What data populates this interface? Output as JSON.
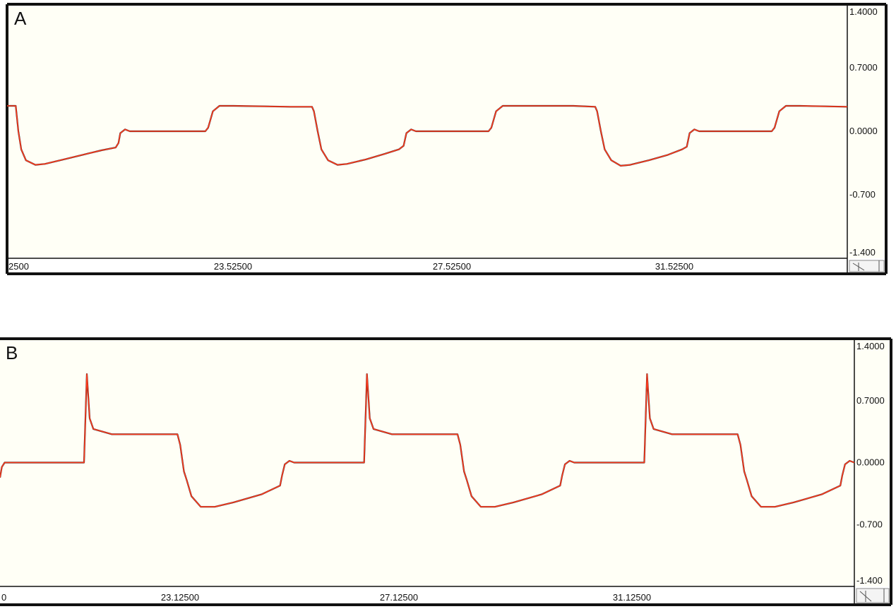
{
  "chart_data": [
    {
      "type": "line",
      "panel_label": "A",
      "x_tick_labels": [
        "2500",
        "23.52500",
        "27.52500",
        "31.52500"
      ],
      "y_tick_labels": [
        "1.4000",
        "0.7000",
        "0.0000",
        "-0.700",
        "-1.400"
      ],
      "ylim": [
        -1.4,
        1.4
      ],
      "grid": false,
      "colors": {
        "trace": "#ff3b1f",
        "underlay": "#1a1a1a",
        "background": "#fffff6",
        "frame": "#111111"
      },
      "series": [
        {
          "points": [
            [
              0,
              0.28
            ],
            [
              0.092,
              0.28
            ],
            [
              0.12,
              0.0
            ],
            [
              0.15,
              -0.2
            ],
            [
              0.2,
              -0.32
            ],
            [
              0.3,
              -0.37
            ],
            [
              0.4,
              -0.36
            ],
            [
              0.6,
              -0.31
            ],
            [
              0.8,
              -0.26
            ],
            [
              1.0,
              -0.21
            ],
            [
              1.15,
              -0.18
            ],
            [
              1.18,
              -0.13
            ],
            [
              1.2,
              -0.02
            ],
            [
              1.25,
              0.02
            ],
            [
              1.3,
              0.0
            ],
            [
              2.1,
              0.0
            ],
            [
              2.13,
              0.04
            ],
            [
              2.18,
              0.22
            ],
            [
              2.25,
              0.28
            ],
            [
              2.4,
              0.28
            ],
            [
              3.0,
              0.27
            ],
            [
              3.23,
              0.27
            ],
            [
              3.25,
              0.22
            ],
            [
              3.29,
              0.0
            ],
            [
              3.33,
              -0.2
            ],
            [
              3.4,
              -0.32
            ],
            [
              3.5,
              -0.37
            ],
            [
              3.6,
              -0.36
            ],
            [
              3.8,
              -0.31
            ],
            [
              4.0,
              -0.25
            ],
            [
              4.15,
              -0.2
            ],
            [
              4.2,
              -0.16
            ],
            [
              4.23,
              -0.02
            ],
            [
              4.28,
              0.02
            ],
            [
              4.33,
              0.0
            ],
            [
              5.1,
              0.0
            ],
            [
              5.13,
              0.04
            ],
            [
              5.18,
              0.22
            ],
            [
              5.25,
              0.28
            ],
            [
              5.4,
              0.28
            ],
            [
              6.0,
              0.28
            ],
            [
              6.23,
              0.27
            ],
            [
              6.25,
              0.22
            ],
            [
              6.29,
              0.0
            ],
            [
              6.33,
              -0.2
            ],
            [
              6.4,
              -0.32
            ],
            [
              6.5,
              -0.38
            ],
            [
              6.6,
              -0.37
            ],
            [
              6.8,
              -0.32
            ],
            [
              7.0,
              -0.26
            ],
            [
              7.15,
              -0.2
            ],
            [
              7.2,
              -0.17
            ],
            [
              7.23,
              -0.02
            ],
            [
              7.28,
              0.02
            ],
            [
              7.33,
              0.0
            ],
            [
              8.1,
              0.0
            ],
            [
              8.13,
              0.04
            ],
            [
              8.18,
              0.22
            ],
            [
              8.25,
              0.28
            ],
            [
              8.4,
              0.28
            ],
            [
              8.9,
              0.27
            ]
          ]
        }
      ]
    },
    {
      "type": "line",
      "panel_label": "B",
      "x_tick_labels": [
        "0",
        "23.12500",
        "27.12500",
        "31.12500"
      ],
      "y_tick_labels": [
        "1.4000",
        "0.7000",
        "0.0000",
        "-0.700",
        "-1.400"
      ],
      "ylim": [
        -1.4,
        1.4
      ],
      "grid": false,
      "colors": {
        "trace": "#ff3b1f",
        "underlay": "#1a1a1a",
        "background": "#fffff6",
        "frame": "#111111"
      },
      "series": [
        {
          "points": [
            [
              0,
              -0.17
            ],
            [
              0.02,
              -0.05
            ],
            [
              0.05,
              0.0
            ],
            [
              0.1,
              0.0
            ],
            [
              0.9,
              0.0
            ],
            [
              0.93,
              1.0
            ],
            [
              0.96,
              0.5
            ],
            [
              1.0,
              0.38
            ],
            [
              1.2,
              0.32
            ],
            [
              1.5,
              0.32
            ],
            [
              1.9,
              0.32
            ],
            [
              1.93,
              0.2
            ],
            [
              1.97,
              -0.1
            ],
            [
              2.0,
              -0.2
            ],
            [
              2.05,
              -0.38
            ],
            [
              2.15,
              -0.5
            ],
            [
              2.3,
              -0.5
            ],
            [
              2.5,
              -0.45
            ],
            [
              2.8,
              -0.36
            ],
            [
              3.0,
              -0.26
            ],
            [
              3.02,
              -0.15
            ],
            [
              3.05,
              -0.02
            ],
            [
              3.1,
              0.02
            ],
            [
              3.15,
              0.0
            ],
            [
              3.9,
              0.0
            ],
            [
              3.93,
              1.0
            ],
            [
              3.96,
              0.5
            ],
            [
              4.0,
              0.38
            ],
            [
              4.2,
              0.32
            ],
            [
              4.5,
              0.32
            ],
            [
              4.9,
              0.32
            ],
            [
              4.93,
              0.2
            ],
            [
              4.97,
              -0.1
            ],
            [
              5.0,
              -0.2
            ],
            [
              5.05,
              -0.38
            ],
            [
              5.15,
              -0.5
            ],
            [
              5.3,
              -0.5
            ],
            [
              5.5,
              -0.45
            ],
            [
              5.8,
              -0.36
            ],
            [
              6.0,
              -0.26
            ],
            [
              6.02,
              -0.15
            ],
            [
              6.05,
              -0.02
            ],
            [
              6.1,
              0.02
            ],
            [
              6.15,
              0.0
            ],
            [
              6.9,
              0.0
            ],
            [
              6.93,
              1.0
            ],
            [
              6.96,
              0.5
            ],
            [
              7.0,
              0.38
            ],
            [
              7.2,
              0.32
            ],
            [
              7.5,
              0.32
            ],
            [
              7.9,
              0.32
            ],
            [
              7.93,
              0.2
            ],
            [
              7.97,
              -0.1
            ],
            [
              8.0,
              -0.2
            ],
            [
              8.05,
              -0.38
            ],
            [
              8.15,
              -0.5
            ],
            [
              8.3,
              -0.5
            ],
            [
              8.5,
              -0.45
            ],
            [
              8.8,
              -0.36
            ],
            [
              9.0,
              -0.26
            ],
            [
              9.02,
              -0.15
            ],
            [
              9.05,
              -0.02
            ],
            [
              9.1,
              0.02
            ],
            [
              9.15,
              0.0
            ]
          ]
        }
      ]
    }
  ]
}
